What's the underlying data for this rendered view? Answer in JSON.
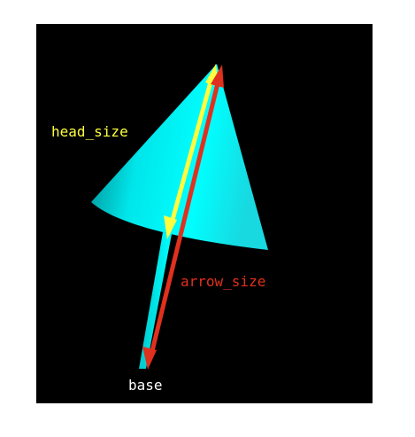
{
  "labels": {
    "head_size": "head_size",
    "arrow_size": "arrow_size",
    "base": "base"
  },
  "colors": {
    "background": "#000000",
    "cone": "#00ffff",
    "head_size_arrow": "#ffff40",
    "arrow_size_arrow": "#e0301e",
    "head_size_label": "#ffff40",
    "arrow_size_label": "#e0301e",
    "base_label": "#ffffff"
  }
}
